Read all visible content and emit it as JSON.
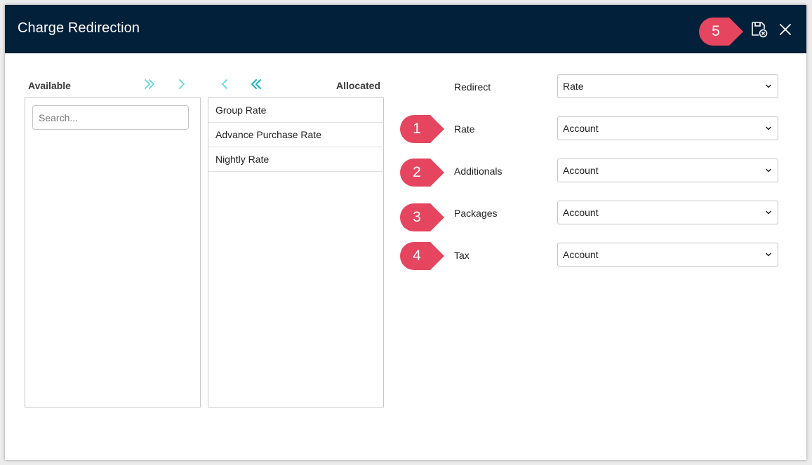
{
  "dialog": {
    "title": "Charge Redirection"
  },
  "header": {
    "marker": "5",
    "save_icon": "save-cancel-icon",
    "close_icon": "close-icon"
  },
  "available": {
    "label": "Available",
    "search_placeholder": "Search...",
    "search_value": ""
  },
  "allocated": {
    "label": "Allocated",
    "items": [
      "Group Rate",
      "Advance Purchase Rate",
      "Nightly Rate"
    ]
  },
  "transfer": {
    "move_all_right_icon": "double-chevron-right-icon",
    "move_right_icon": "chevron-right-icon",
    "move_left_icon": "chevron-left-icon",
    "move_all_left_icon": "double-chevron-left-icon"
  },
  "form": {
    "redirect": {
      "label": "Redirect",
      "value": "Rate"
    },
    "rows": [
      {
        "marker": "1",
        "label": "Rate",
        "value": "Account"
      },
      {
        "marker": "2",
        "label": "Additionals",
        "value": "Account"
      },
      {
        "marker": "3",
        "label": "Packages",
        "value": "Account"
      },
      {
        "marker": "4",
        "label": "Tax",
        "value": "Account"
      }
    ]
  },
  "colors": {
    "header_bg": "#03203a",
    "marker": "#e5455e",
    "accent": "#20c4c8"
  }
}
